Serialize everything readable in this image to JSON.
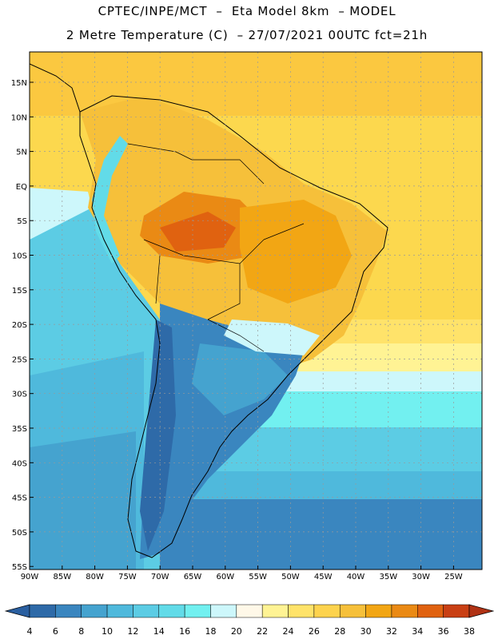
{
  "header": {
    "line1": "CPTEC/INPE/MCT  –  Eta Model 8km  – MODEL",
    "line2": "2 Metre Temperature (C)  – 27/07/2021 00UTC fct=21h"
  },
  "map": {
    "lat_labels": [
      "15N",
      "10N",
      "5N",
      "EQ",
      "5S",
      "10S",
      "15S",
      "20S",
      "25S",
      "30S",
      "35S",
      "40S",
      "45S",
      "50S",
      "55S"
    ],
    "lon_labels": [
      "90W",
      "85W",
      "80W",
      "75W",
      "70W",
      "65W",
      "60W",
      "55W",
      "50W",
      "45W",
      "40W",
      "35W",
      "30W",
      "25W"
    ],
    "grid": true
  },
  "colorbar": {
    "values": [
      "4",
      "6",
      "8",
      "10",
      "12",
      "14",
      "16",
      "18",
      "20",
      "22",
      "24",
      "26",
      "28",
      "30",
      "32",
      "34",
      "36",
      "38"
    ],
    "colors": [
      "#2e6aa8",
      "#3a86bf",
      "#45a3cf",
      "#4fb9dc",
      "#5ccce4",
      "#62dbe8",
      "#72f0f0",
      "#cdf7fb",
      "#fff8e8",
      "#fff394",
      "#ffe36a",
      "#fdd34e",
      "#f6c03a",
      "#f2a614",
      "#ea8a14",
      "#e06210",
      "#c94014"
    ],
    "left_arrow_color": "#2a5fa0",
    "right_arrow_color": "#b03214"
  }
}
